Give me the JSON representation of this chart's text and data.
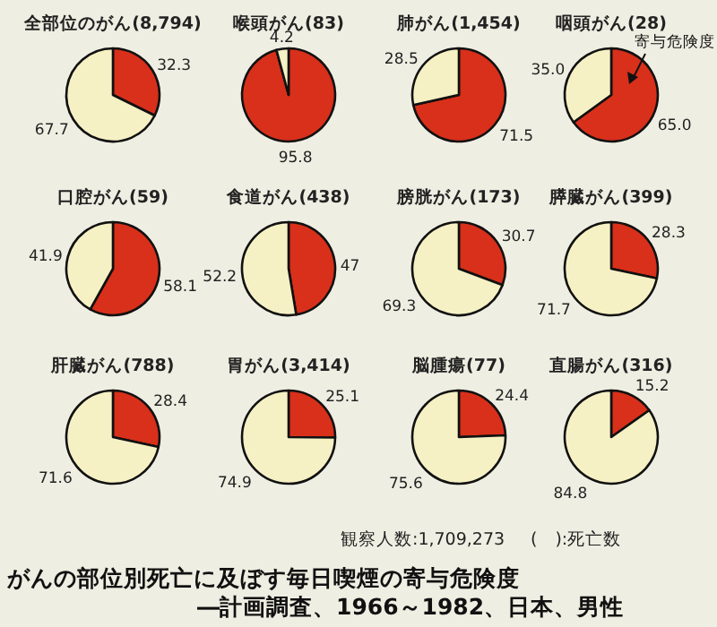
{
  "chart_data": [
    {
      "type": "pie",
      "title": "全部位のがん(8,794)",
      "categories": [
        null,
        null
      ],
      "values": [
        32.3,
        67.7
      ],
      "colors": [
        "#d8301a",
        "#f6f1c4"
      ],
      "value_labels": [
        "32.3",
        "67.7"
      ]
    },
    {
      "type": "pie",
      "title": "喉頭がん(83)",
      "categories": [
        null,
        null
      ],
      "values": [
        95.8,
        4.2
      ],
      "colors": [
        "#d8301a",
        "#f6f1c4"
      ],
      "value_labels": [
        "95.8",
        "4.2"
      ]
    },
    {
      "type": "pie",
      "title": "肺がん(1,454)",
      "categories": [
        null,
        null
      ],
      "values": [
        71.5,
        28.5
      ],
      "colors": [
        "#d8301a",
        "#f6f1c4"
      ],
      "value_labels": [
        "71.5",
        "28.5"
      ]
    },
    {
      "type": "pie",
      "title": "咽頭がん(28)",
      "categories": [
        null,
        null
      ],
      "values": [
        65.0,
        35.0
      ],
      "colors": [
        "#d8301a",
        "#f6f1c4"
      ],
      "value_labels": [
        "65.0",
        "35.0"
      ],
      "annotations": [
        "寄与危険度"
      ]
    },
    {
      "type": "pie",
      "title": "口腔がん(59)",
      "categories": [
        null,
        null
      ],
      "values": [
        58.1,
        41.9
      ],
      "colors": [
        "#d8301a",
        "#f6f1c4"
      ],
      "value_labels": [
        "58.1",
        "41.9"
      ]
    },
    {
      "type": "pie",
      "title": "食道がん(438)",
      "categories": [
        null,
        null
      ],
      "values": [
        47,
        52.2
      ],
      "colors": [
        "#d8301a",
        "#f6f1c4"
      ],
      "value_labels": [
        "47",
        "52.2"
      ]
    },
    {
      "type": "pie",
      "title": "膀胱がん(173)",
      "categories": [
        null,
        null
      ],
      "values": [
        30.7,
        69.3
      ],
      "colors": [
        "#d8301a",
        "#f6f1c4"
      ],
      "value_labels": [
        "30.7",
        "69.3"
      ]
    },
    {
      "type": "pie",
      "title": "膵臓がん(399)",
      "categories": [
        null,
        null
      ],
      "values": [
        28.3,
        71.7
      ],
      "colors": [
        "#d8301a",
        "#f6f1c4"
      ],
      "value_labels": [
        "28.3",
        "71.7"
      ]
    },
    {
      "type": "pie",
      "title": "肝臓がん(788)",
      "categories": [
        null,
        null
      ],
      "values": [
        28.4,
        71.6
      ],
      "colors": [
        "#d8301a",
        "#f6f1c4"
      ],
      "value_labels": [
        "28.4",
        "71.6"
      ]
    },
    {
      "type": "pie",
      "title": "胃がん(3,414)",
      "categories": [
        null,
        null
      ],
      "values": [
        25.1,
        74.9
      ],
      "colors": [
        "#d8301a",
        "#f6f1c4"
      ],
      "value_labels": [
        "25.1",
        "74.9"
      ]
    },
    {
      "type": "pie",
      "title": "脳腫瘍(77)",
      "categories": [
        null,
        null
      ],
      "values": [
        24.4,
        75.6
      ],
      "colors": [
        "#d8301a",
        "#f6f1c4"
      ],
      "value_labels": [
        "24.4",
        "75.6"
      ]
    },
    {
      "type": "pie",
      "title": "直腸がん(316)",
      "categories": [
        null,
        null
      ],
      "values": [
        15.2,
        84.8
      ],
      "colors": [
        "#d8301a",
        "#f6f1c4"
      ],
      "value_labels": [
        "15.2",
        "84.8"
      ]
    },
    {
      "type": "other",
      "title": "がんの部位別死亡に及ぼす毎日喫煙の寄与危険度",
      "subtitle": "―計画調査、1966～1982、日本、男性",
      "annotations": [
        "観察人数:1,709,273",
        "(　):死亡数"
      ]
    }
  ]
}
